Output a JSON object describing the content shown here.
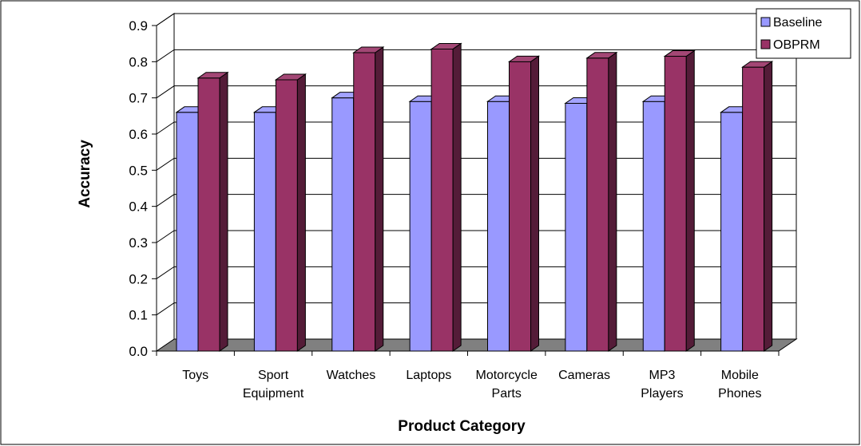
{
  "chart_data": {
    "type": "bar",
    "xlabel": "Product Category",
    "ylabel": "Accuracy",
    "ylim": [
      0,
      0.9
    ],
    "yticks": [
      0.0,
      0.1,
      0.2,
      0.3,
      0.4,
      0.5,
      0.6,
      0.7,
      0.8,
      0.9
    ],
    "ytick_labels": [
      "0.0",
      "0.1",
      "0.2",
      "0.3",
      "0.4",
      "0.5",
      "0.6",
      "0.7",
      "0.8",
      "0.9"
    ],
    "grid": true,
    "legend_position": "top-right",
    "categories": [
      [
        "Toys"
      ],
      [
        "Sport",
        "Equipment"
      ],
      [
        "Watches"
      ],
      [
        "Laptops"
      ],
      [
        "Motorcycle",
        "Parts"
      ],
      [
        "Cameras"
      ],
      [
        "MP3",
        "Players"
      ],
      [
        "Mobile",
        "Phones"
      ]
    ],
    "series": [
      {
        "name": "Baseline",
        "color": "#9999ff",
        "values": [
          0.66,
          0.66,
          0.7,
          0.69,
          0.69,
          0.685,
          0.69,
          0.66
        ]
      },
      {
        "name": "OBPRM",
        "color": "#993366",
        "values": [
          0.755,
          0.75,
          0.825,
          0.835,
          0.8,
          0.81,
          0.815,
          0.785
        ]
      }
    ]
  }
}
